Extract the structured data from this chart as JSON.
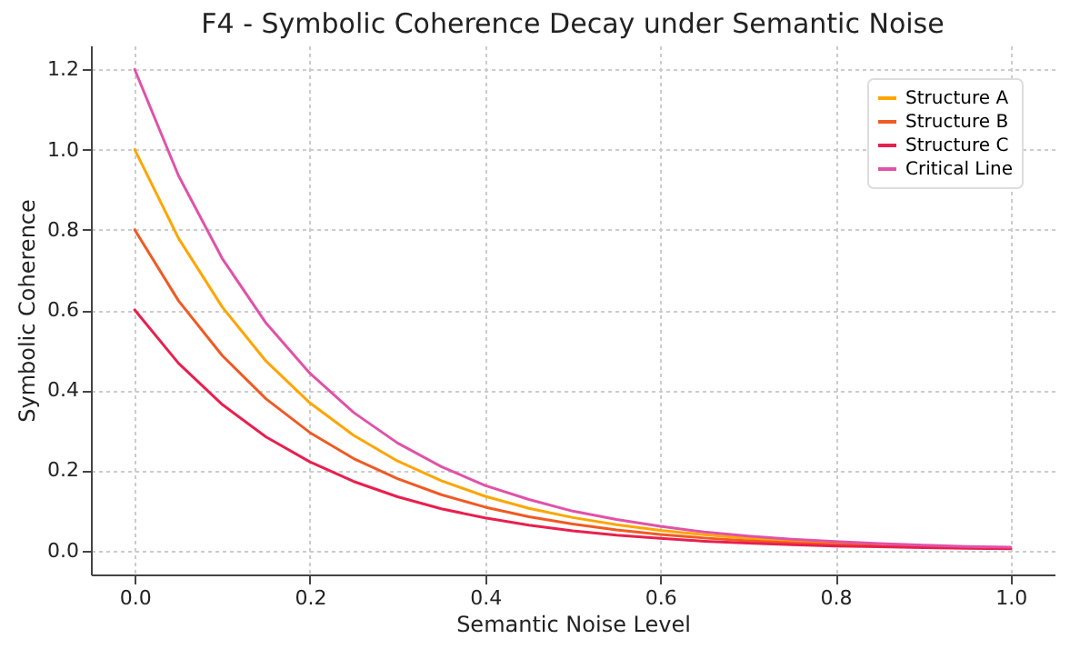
{
  "chart_data": {
    "type": "line",
    "title": "F4 - Symbolic Coherence Decay under Semantic Noise",
    "xlabel": "Semantic Noise Level",
    "ylabel": "Symbolic Coherence",
    "x": [
      0,
      0.05,
      0.1,
      0.15,
      0.2,
      0.25,
      0.3,
      0.35,
      0.4,
      0.45,
      0.5,
      0.55,
      0.6,
      0.65,
      0.7,
      0.75,
      0.8,
      0.85,
      0.9,
      0.95,
      1.0
    ],
    "series": [
      {
        "name": "Structure A",
        "color": "#ffa500",
        "values": [
          1.0,
          0.779,
          0.607,
          0.472,
          0.368,
          0.287,
          0.223,
          0.174,
          0.135,
          0.105,
          0.082,
          0.064,
          0.05,
          0.039,
          0.03,
          0.024,
          0.018,
          0.014,
          null,
          null,
          null
        ]
      },
      {
        "name": "Structure B",
        "color": "#f05a23",
        "values": [
          0.8,
          0.623,
          0.486,
          0.378,
          0.294,
          0.229,
          0.179,
          0.139,
          0.108,
          0.084,
          0.066,
          0.051,
          0.04,
          0.031,
          0.024,
          0.019,
          0.015,
          0.011,
          0.009,
          0.007,
          0.005
        ]
      },
      {
        "name": "Structure C",
        "color": "#e8204e",
        "values": [
          0.6,
          0.467,
          0.364,
          0.283,
          0.221,
          0.172,
          0.134,
          0.104,
          0.081,
          0.063,
          0.049,
          0.038,
          0.03,
          0.023,
          0.018,
          0.014,
          0.011,
          0.009,
          0.007,
          0.005,
          0.004
        ]
      },
      {
        "name": "Critical Line",
        "color": "#e052a8",
        "values": [
          1.2,
          0.935,
          0.728,
          0.567,
          0.442,
          0.344,
          0.268,
          0.209,
          0.162,
          0.127,
          0.098,
          0.077,
          0.06,
          0.046,
          0.036,
          0.028,
          0.022,
          0.017,
          0.013,
          0.01,
          0.008
        ]
      }
    ],
    "xlim": [
      -0.05,
      1.05
    ],
    "ylim": [
      -0.06,
      1.26
    ],
    "xticks": [
      {
        "value": 0,
        "label": "0.0"
      },
      0.2,
      0.4,
      0.6,
      0.8,
      {
        "value": 1,
        "label": "1.0"
      }
    ],
    "yticks": [
      {
        "value": 0,
        "label": "0.0"
      },
      0.2,
      0.4,
      0.6,
      0.8,
      {
        "value": 1,
        "label": "1.0"
      },
      1.2
    ],
    "grid": true,
    "legend": "top right",
    "line_style": "solid"
  }
}
